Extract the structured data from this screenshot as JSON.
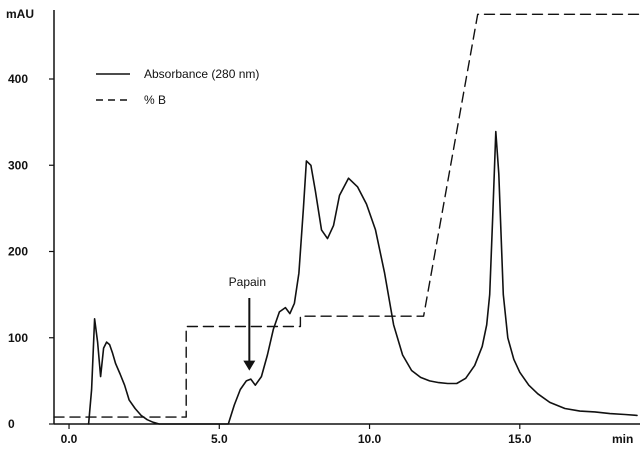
{
  "chart_data": {
    "type": "line",
    "ylabel": "mAU",
    "xlabel": "min",
    "xlim": [
      -0.5,
      19.0
    ],
    "ylim": [
      0,
      480
    ],
    "x_ticks": [
      0.0,
      5.0,
      10.0,
      15.0
    ],
    "x_tick_labels": [
      "0.0",
      "5.0",
      "10.0",
      "15.0"
    ],
    "y_ticks": [
      0,
      100,
      200,
      300,
      400
    ],
    "y_tick_labels": [
      "0",
      "100",
      "200",
      "300",
      "400"
    ],
    "grid": false,
    "legend_position": "top-left",
    "series": [
      {
        "name": "Absorbance (280 nm)",
        "style": "solid",
        "color": "#111111",
        "x": [
          0.65,
          0.75,
          0.85,
          0.95,
          1.05,
          1.15,
          1.25,
          1.35,
          1.45,
          1.55,
          1.7,
          1.85,
          2.0,
          2.2,
          2.4,
          2.6,
          2.8,
          3.0,
          5.3,
          5.5,
          5.7,
          5.9,
          6.05,
          6.2,
          6.4,
          6.6,
          6.8,
          7.0,
          7.2,
          7.35,
          7.5,
          7.65,
          7.8,
          7.9,
          8.05,
          8.2,
          8.4,
          8.6,
          8.8,
          9.0,
          9.3,
          9.6,
          9.9,
          10.2,
          10.5,
          10.8,
          11.1,
          11.4,
          11.7,
          12.0,
          12.3,
          12.6,
          12.9,
          13.2,
          13.5,
          13.75,
          13.9,
          14.0,
          14.1,
          14.2,
          14.3,
          14.45,
          14.6,
          14.8,
          15.0,
          15.3,
          15.6,
          16.0,
          16.5,
          17.0,
          17.5,
          18.0,
          18.5,
          18.9
        ],
        "y": [
          0,
          40,
          122,
          95,
          55,
          88,
          95,
          92,
          82,
          70,
          58,
          45,
          28,
          18,
          10,
          5,
          2,
          0,
          0,
          22,
          40,
          50,
          52,
          45,
          55,
          80,
          110,
          130,
          135,
          128,
          140,
          175,
          250,
          305,
          300,
          270,
          225,
          215,
          230,
          265,
          285,
          275,
          255,
          225,
          175,
          115,
          80,
          62,
          54,
          50,
          48,
          47,
          47,
          53,
          68,
          90,
          115,
          150,
          240,
          339,
          290,
          150,
          100,
          75,
          60,
          45,
          35,
          25,
          18,
          15,
          14,
          12,
          11,
          10
        ],
        "points": 74
      },
      {
        "name": "% B",
        "style": "dashed",
        "color": "#111111",
        "x": [
          -0.5,
          3.9,
          3.9,
          7.7,
          7.7,
          11.8,
          13.6,
          19.0
        ],
        "y": [
          8,
          8,
          113,
          113,
          125,
          125,
          475,
          475
        ]
      }
    ],
    "annotations": [
      {
        "text": "Papain",
        "arrow_to_x": 6.0,
        "arrow_to_y": 55
      }
    ]
  }
}
